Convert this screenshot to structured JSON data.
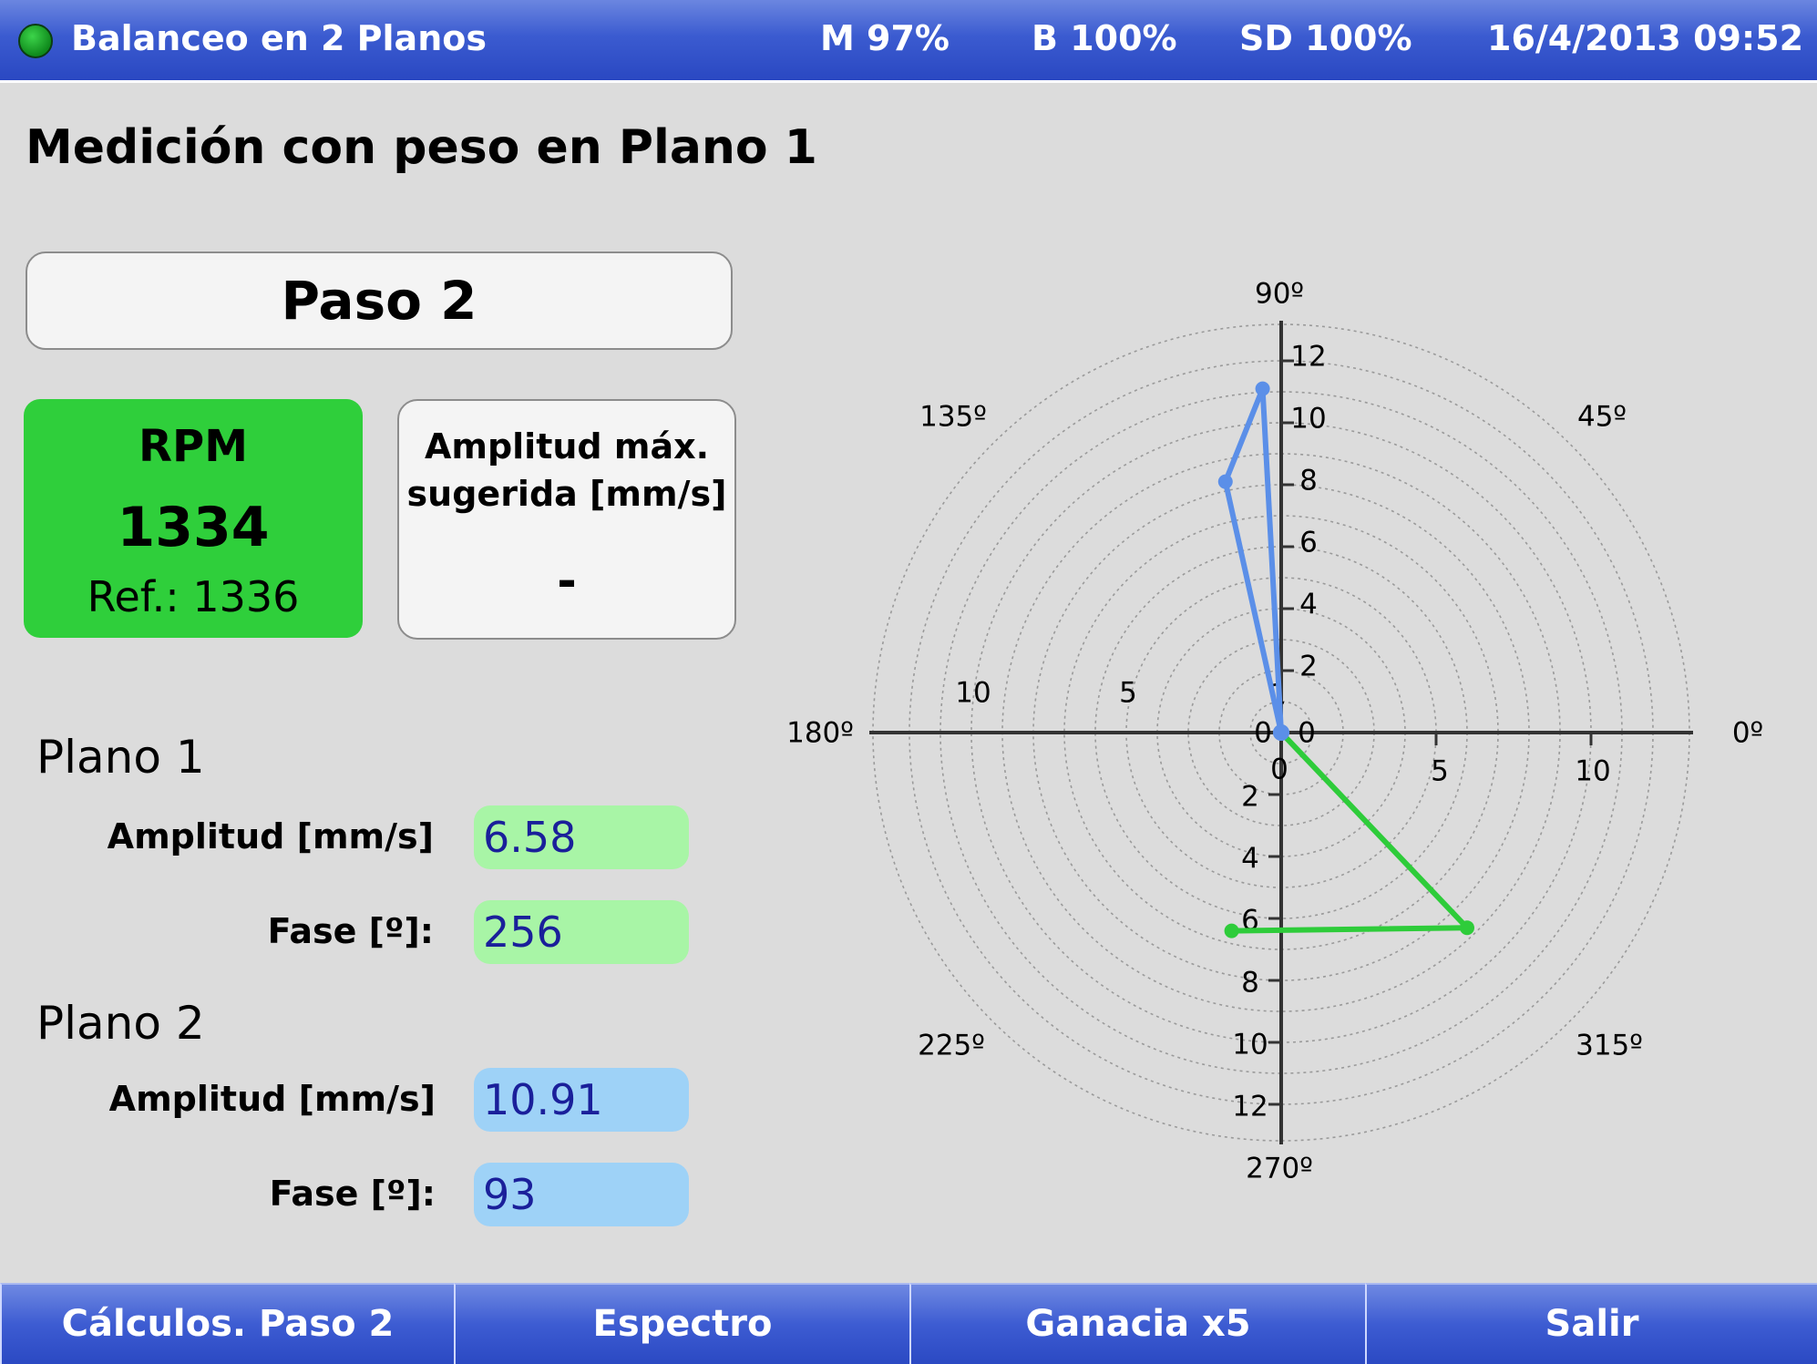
{
  "status_bar": {
    "title": "Balanceo en 2 Planos",
    "memory": "M 97%",
    "battery": "B 100%",
    "sd": "SD 100%",
    "datetime": "16/4/2013 09:52",
    "status_led_color": "#1aa52a"
  },
  "screen_title": "Medición con peso en Plano 1",
  "step_label": "Paso 2",
  "rpm": {
    "label": "RPM",
    "value": "1334",
    "reference": "Ref.: 1336",
    "color": "#2fcf3b"
  },
  "max_amplitude": {
    "label_line1": "Amplitud máx.",
    "label_line2": "sugerida [mm/s]",
    "value": "-"
  },
  "plane1": {
    "title": "Plano 1",
    "amp_label": "Amplitud [mm/s]",
    "amp_value": "6.58",
    "phase_label": "Fase [º]:",
    "phase_value": "256",
    "color": "#a8f5a6"
  },
  "plane2": {
    "title": "Plano 2",
    "amp_label": "Amplitud [mm/s]",
    "amp_value": "10.91",
    "phase_label": "Fase [º]:",
    "phase_value": "93",
    "color": "#9ed2f7"
  },
  "chart_data": {
    "type": "polar",
    "angle_labels": [
      "0º",
      "45º",
      "90º",
      "135º",
      "180º",
      "225º",
      "270º",
      "315º"
    ],
    "radial_rings": 13,
    "x_ticks": [
      "10",
      "5",
      "0",
      "0",
      "5",
      "10"
    ],
    "y_ticks_pos": [
      "2",
      "4",
      "6",
      "8",
      "10",
      "12"
    ],
    "y_ticks_neg": [
      "2",
      "4",
      "6",
      "8",
      "10",
      "12"
    ],
    "origin_labels": [
      "0",
      "0",
      "0",
      "0"
    ],
    "axis_max": 13,
    "series": [
      {
        "points": [
          [
            0,
            0
          ],
          [
            -0.6,
            11.1
          ],
          [
            -1.8,
            8.1
          ],
          [
            0,
            0
          ]
        ],
        "color": "#5b8fe8"
      },
      {
        "points": [
          [
            0,
            0
          ],
          [
            6.0,
            -6.3
          ],
          [
            -1.6,
            -6.4
          ]
        ],
        "color": "#2ecc3a"
      }
    ]
  },
  "bottom_buttons": [
    "Cálculos. Paso 2",
    "Espectro",
    "Ganacia x5",
    "Salir"
  ]
}
